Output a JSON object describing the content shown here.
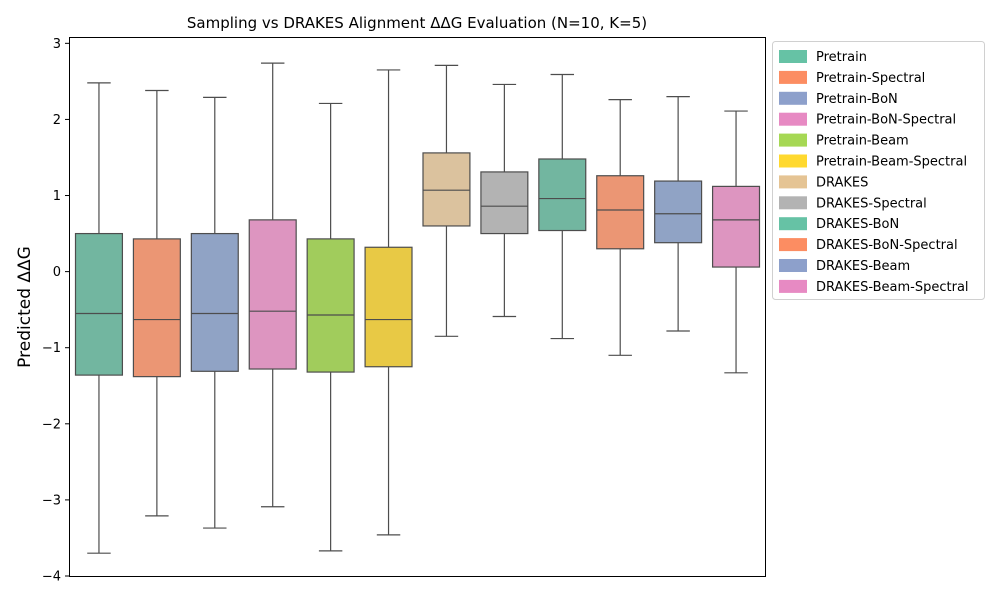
{
  "chart_data": {
    "type": "box",
    "title": "Sampling vs DRAKES Alignment ΔΔG Evaluation (N=10, K=5)",
    "xlabel": "",
    "ylabel": "Predicted ΔΔG",
    "ylim": [
      -4.0,
      3.07
    ],
    "yticks": [
      -4,
      -3,
      -2,
      -1,
      0,
      1,
      2,
      3
    ],
    "ytick_labels": [
      "−4",
      "−3",
      "−2",
      "−1",
      "0",
      "1",
      "2",
      "3"
    ],
    "grid": false,
    "legend_position": "outside-right",
    "series": [
      {
        "name": "Pretrain",
        "color": "#66c2a5",
        "fill": "#72b6a0",
        "whisker_low": -3.7,
        "q1": -1.36,
        "median": -0.55,
        "q3": 0.5,
        "whisker_high": 2.48
      },
      {
        "name": "Pretrain-Spectral",
        "color": "#fc8d62",
        "fill": "#eb9674",
        "whisker_low": -3.21,
        "q1": -1.38,
        "median": -0.63,
        "q3": 0.43,
        "whisker_high": 2.38
      },
      {
        "name": "Pretrain-BoN",
        "color": "#8da0cb",
        "fill": "#90a3c5",
        "whisker_low": -3.37,
        "q1": -1.31,
        "median": -0.55,
        "q3": 0.5,
        "whisker_high": 2.29
      },
      {
        "name": "Pretrain-BoN-Spectral",
        "color": "#e78ac3",
        "fill": "#dd95c0",
        "whisker_low": -3.09,
        "q1": -1.28,
        "median": -0.52,
        "q3": 0.68,
        "whisker_high": 2.74
      },
      {
        "name": "Pretrain-Beam",
        "color": "#a6d854",
        "fill": "#a1cc5c",
        "whisker_low": -3.67,
        "q1": -1.32,
        "median": -0.57,
        "q3": 0.43,
        "whisker_high": 2.21
      },
      {
        "name": "Pretrain-Beam-Spectral",
        "color": "#ffd92f",
        "fill": "#e8c945",
        "whisker_low": -3.46,
        "q1": -1.25,
        "median": -0.63,
        "q3": 0.32,
        "whisker_high": 2.65
      },
      {
        "name": "DRAKES",
        "color": "#e5c494",
        "fill": "#dbc29e",
        "whisker_low": -0.85,
        "q1": 0.6,
        "median": 1.07,
        "q3": 1.56,
        "whisker_high": 2.71
      },
      {
        "name": "DRAKES-Spectral",
        "color": "#b3b3b3",
        "fill": "#b3b3b3",
        "whisker_low": -0.59,
        "q1": 0.5,
        "median": 0.86,
        "q3": 1.31,
        "whisker_high": 2.46
      },
      {
        "name": "DRAKES-BoN",
        "color": "#66c2a5",
        "fill": "#72b6a0",
        "whisker_low": -0.88,
        "q1": 0.54,
        "median": 0.96,
        "q3": 1.48,
        "whisker_high": 2.59
      },
      {
        "name": "DRAKES-BoN-Spectral",
        "color": "#fc8d62",
        "fill": "#eb9674",
        "whisker_low": -1.1,
        "q1": 0.3,
        "median": 0.81,
        "q3": 1.26,
        "whisker_high": 2.26
      },
      {
        "name": "DRAKES-Beam",
        "color": "#8da0cb",
        "fill": "#90a3c5",
        "whisker_low": -0.78,
        "q1": 0.38,
        "median": 0.76,
        "q3": 1.19,
        "whisker_high": 2.3
      },
      {
        "name": "DRAKES-Beam-Spectral",
        "color": "#e78ac3",
        "fill": "#dd95c0",
        "whisker_low": -1.33,
        "q1": 0.06,
        "median": 0.68,
        "q3": 1.12,
        "whisker_high": 2.11
      }
    ]
  }
}
